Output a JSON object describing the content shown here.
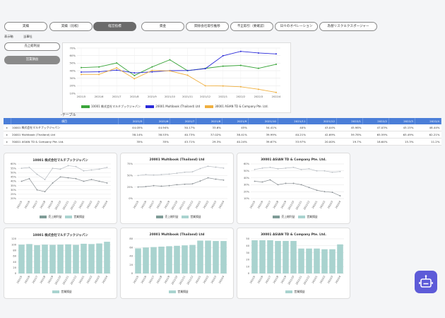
{
  "tabs": [
    {
      "label": "実績"
    },
    {
      "label": "実績（比較）"
    },
    {
      "label": "経営指標"
    },
    {
      "label": "資金"
    },
    {
      "label": "関係会社取引推移"
    },
    {
      "label": "不正取引（要確認）"
    },
    {
      "label": "日々のオペレーション"
    },
    {
      "label": "為替リスクエクスポージャー"
    }
  ],
  "active_tab": 2,
  "filter": {
    "label": "表示軸",
    "value": "当事社"
  },
  "side_buttons": [
    {
      "label": "売上総利益"
    },
    {
      "label": "営業損益"
    }
  ],
  "main_chart": {
    "x": [
      "2021/5",
      "2021/6",
      "2021/7",
      "2021/8",
      "2021/9",
      "2021/10",
      "2021/11",
      "2021/12",
      "2022/1",
      "2022/2",
      "2022/3",
      "2022/4"
    ],
    "y_ticks": [
      "10%",
      "20%",
      "30%",
      "40%",
      "50%",
      "60%",
      "70%"
    ],
    "series": [
      {
        "name": "10001 株式会社マルチブックジャパン",
        "color": "#3aa53a",
        "values": [
          44.05,
          44.94,
          50.17,
          33.6,
          45,
          54.41,
          40,
          43.04,
          45.98,
          47.03,
          43.15,
          48.44
        ]
      },
      {
        "name": "20001 Multibook (Thailand) Ltd",
        "color": "#2b2bd9",
        "values": [
          38.14,
          38.53,
          40.73,
          37.02,
          38.41,
          39.99,
          40.21,
          42.69,
          59.78,
          65.59,
          63.49,
          62.21
        ]
      },
      {
        "name": "30001 ASIAN TD & Company Pte. Ltd.",
        "color": "#f0b040",
        "values": [
          35,
          35,
          43.71,
          29.3,
          40.24,
          39.67,
          33.97,
          20,
          19.7,
          18.64,
          15.3,
          11.2
        ]
      }
    ]
  },
  "table": {
    "title": "-テーブル",
    "headers": [
      "項目",
      "2021/5",
      "2021/6",
      "2021/7",
      "2021/8",
      "2021/9",
      "2021/10",
      "2021/11",
      "2021/12",
      "2022/1",
      "2022/2",
      "2022/3",
      "2022/4"
    ],
    "rows": [
      {
        "name": "10001 株式会社マルチブックジャパン",
        "values": [
          "44.05%",
          "44.94%",
          "50.17%",
          "33.6%",
          "45%",
          "54.41%",
          "40%",
          "43.04%",
          "45.98%",
          "47.03%",
          "43.15%",
          "48.44%"
        ]
      },
      {
        "name": "20001 Multibook (Thailand) Ltd",
        "values": [
          "38.14%",
          "38.53%",
          "40.73%",
          "37.02%",
          "38.41%",
          "39.99%",
          "40.21%",
          "42.69%",
          "59.78%",
          "65.59%",
          "63.49%",
          "62.21%"
        ]
      },
      {
        "name": "30001 ASIAN TD & Company Pte. Ltd.",
        "values": [
          "35%",
          "35%",
          "43.71%",
          "29.3%",
          "40.24%",
          "39.67%",
          "33.97%",
          "20.00%",
          "19.7%",
          "18.64%",
          "15.3%",
          "11.2%"
        ]
      }
    ]
  },
  "chart_data": [
    {
      "type": "line",
      "title": "10001 株式会社マルチブックジャパン",
      "x": [
        "2021/5",
        "2021/6",
        "2021/7",
        "2021/8",
        "2021/9",
        "2021/10",
        "2021/11",
        "2021/12",
        "2022/1",
        "2022/2",
        "2022/3",
        "2022/4"
      ],
      "y_ticks": [
        "20%",
        "25%",
        "30%",
        "35%",
        "40%",
        "45%",
        "50%",
        "55%",
        "60%"
      ],
      "ylim": [
        20,
        60
      ],
      "series": [
        {
          "name": "売上総利益",
          "values": [
            55,
            56,
            48,
            42,
            55,
            54,
            58,
            57,
            52,
            53,
            54,
            56
          ]
        },
        {
          "name": "営業損益",
          "values": [
            40,
            43,
            30,
            28,
            38,
            45,
            44,
            43,
            40,
            42,
            40,
            38
          ]
        }
      ]
    },
    {
      "type": "line",
      "title": "20001 Multibook (Thailand) Ltd",
      "x": [
        "2021/5",
        "2021/6",
        "2021/7",
        "2021/8",
        "2021/9",
        "2021/10",
        "2021/11",
        "2021/12",
        "2022/1",
        "2022/2",
        "2022/3",
        "2022/4"
      ],
      "y_ticks": [
        "0%",
        "25%",
        "50%",
        "75%"
      ],
      "ylim": [
        0,
        75
      ],
      "series": [
        {
          "name": "売上総利益",
          "values": [
            50,
            52,
            51,
            52,
            53,
            55,
            57,
            58,
            65,
            70,
            68,
            66
          ]
        },
        {
          "name": "営業損益",
          "values": [
            25,
            26,
            28,
            27,
            28,
            30,
            31,
            32,
            38,
            45,
            42,
            40
          ]
        }
      ]
    },
    {
      "type": "line",
      "title": "30001 ASIAN TD & Company Pte. Ltd.",
      "x": [
        "2021/5",
        "2021/6",
        "2021/7",
        "2021/8",
        "2021/9",
        "2021/10",
        "2021/11",
        "2021/12",
        "2022/1",
        "2022/2",
        "2022/3",
        "2022/4"
      ],
      "y_ticks": [
        "10%",
        "20%",
        "30%",
        "40%",
        "50%",
        "60%"
      ],
      "ylim": [
        10,
        60
      ],
      "series": [
        {
          "name": "売上総利益",
          "values": [
            52,
            54,
            55,
            53,
            54,
            55,
            52,
            53,
            50,
            50,
            48,
            49
          ]
        },
        {
          "name": "営業損益",
          "values": [
            35,
            34,
            37,
            30,
            32,
            32,
            30,
            26,
            22,
            20,
            19,
            14
          ]
        }
      ]
    },
    {
      "type": "bar",
      "title": "10001 株式会社マルチブックジャパン",
      "categories": [
        "2021/5",
        "2021/6",
        "2021/7",
        "2021/8",
        "2021/9",
        "2021/10",
        "2021/11",
        "2021/12",
        "2022/1",
        "2022/2",
        "2022/3",
        "2022/4"
      ],
      "y_ticks": [
        "0",
        "20",
        "40",
        "60",
        "80",
        "100",
        "120"
      ],
      "ylim": [
        0,
        120
      ],
      "series": [
        {
          "name": "営業損益",
          "values": [
            100,
            102,
            98,
            100,
            99,
            100,
            101,
            99,
            103,
            102,
            104,
            110
          ]
        }
      ]
    },
    {
      "type": "bar",
      "title": "20001 Multibook (Thailand) Ltd",
      "categories": [
        "2021/5",
        "2021/6",
        "2021/7",
        "2021/8",
        "2021/9",
        "2021/10",
        "2021/11",
        "2021/12",
        "2022/1",
        "2022/2",
        "2022/3",
        "2022/4"
      ],
      "y_ticks": [
        "0",
        "20",
        "40",
        "60",
        "80"
      ],
      "ylim": [
        0,
        80
      ],
      "series": [
        {
          "name": "営業損益",
          "values": [
            58,
            60,
            61,
            62,
            63,
            64,
            65,
            66,
            76,
            76,
            75,
            75
          ]
        }
      ]
    },
    {
      "type": "bar",
      "title": "30001 ASIAN TD & Company Pte. Ltd.",
      "categories": [
        "2021/5",
        "2021/6",
        "2021/7",
        "2021/8",
        "2021/9",
        "2021/10",
        "2021/11",
        "2021/12",
        "2022/1",
        "2022/2",
        "2022/3",
        "2022/4"
      ],
      "y_ticks": [
        "0",
        "10",
        "20",
        "30",
        "40",
        "50"
      ],
      "ylim": [
        0,
        50
      ],
      "series": [
        {
          "name": "営業損益",
          "values": [
            48,
            48,
            48,
            47,
            47,
            47,
            36,
            36,
            36,
            35,
            35,
            42
          ]
        }
      ]
    }
  ],
  "colors": {
    "bar": "#a9d3cf",
    "line_light": "#b8bdc3",
    "line_dark": "#8a9094",
    "legend_dark": "#7f9c97",
    "header": "#4a7ed8",
    "robot": "#5d5bd8"
  }
}
